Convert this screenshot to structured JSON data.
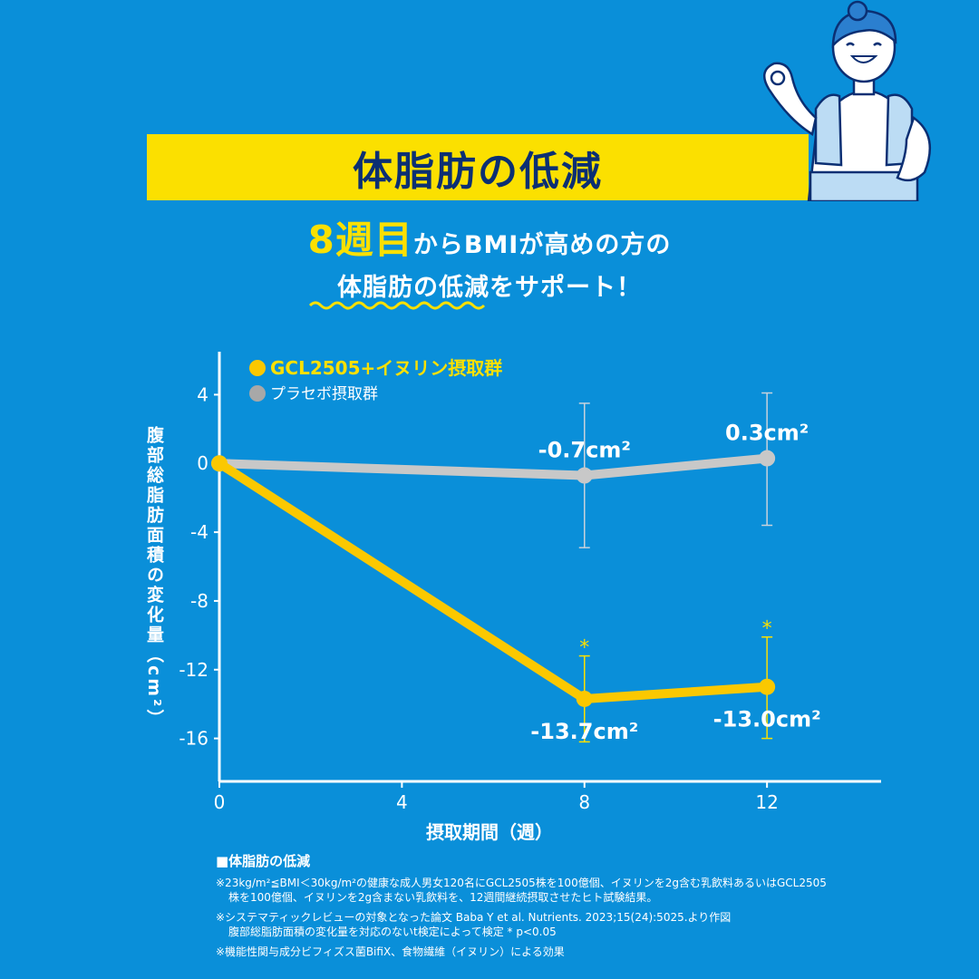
{
  "banner": {
    "title": "体脂肪の低減"
  },
  "headline": {
    "emphasis": "8週目",
    "line1_rest": "からBMIが高めの方の",
    "line2": "体脂肪の低減をサポート！"
  },
  "chart_data": {
    "type": "line",
    "x": [
      0,
      8,
      12
    ],
    "xticks": [
      "0",
      "4",
      "8",
      "12"
    ],
    "xlim": [
      0,
      14.5
    ],
    "yticks": [
      "4",
      "0",
      "-4",
      "-8",
      "-12",
      "-16"
    ],
    "ylim": [
      -18.5,
      6.5
    ],
    "xlabel": "摂取期間（週）",
    "ylabel": "腹部総脂肪面積の変化量（cm²）",
    "legend_position": "top-left",
    "series": [
      {
        "name": "GCL2505+イヌリン摂取群",
        "color": "#fbc800",
        "values": [
          0,
          -13.7,
          -13.0
        ],
        "error_low": [
          null,
          -16.2,
          -16.0
        ],
        "error_high": [
          null,
          -11.2,
          -10.1
        ],
        "significance": [
          null,
          "*",
          "*"
        ],
        "labels": [
          null,
          "-13.7cm²",
          "-13.0cm²"
        ]
      },
      {
        "name": "プラセボ摂取群",
        "color": "#c8c8c8",
        "values": [
          0,
          -0.7,
          0.3
        ],
        "error_low": [
          null,
          -4.9,
          -3.6
        ],
        "error_high": [
          null,
          3.5,
          4.1
        ],
        "labels": [
          null,
          "-0.7cm²",
          "0.3cm²"
        ]
      }
    ]
  },
  "notes": {
    "heading": "■体脂肪の低減",
    "note1_line1": "※23kg/m²≦BMI＜30kg/m²の健康な成人男女120名にGCL2505株を100億個、イヌリンを2g含む乳飲料あるいはGCL2505",
    "note1_line2": "株を100億個、イヌリンを2g含まない乳飲料を、12週間継続摂取させたヒト試験結果。",
    "note2_line1": "※システマティックレビューの対象となった論文 Baba Y et al. Nutrients. 2023;15(24):5025.より作図",
    "note2_line2": "腹部総脂肪面積の変化量を対応のないt検定によって検定 * p<0.05",
    "note3": "※機能性関与成分ビフィズス菌BifiX、食物繊維（イヌリン）による効果"
  },
  "colors": {
    "background": "#0a8fd9",
    "banner": "#fbe000",
    "banner_text": "#0b2f73",
    "accent": "#fbe000"
  }
}
